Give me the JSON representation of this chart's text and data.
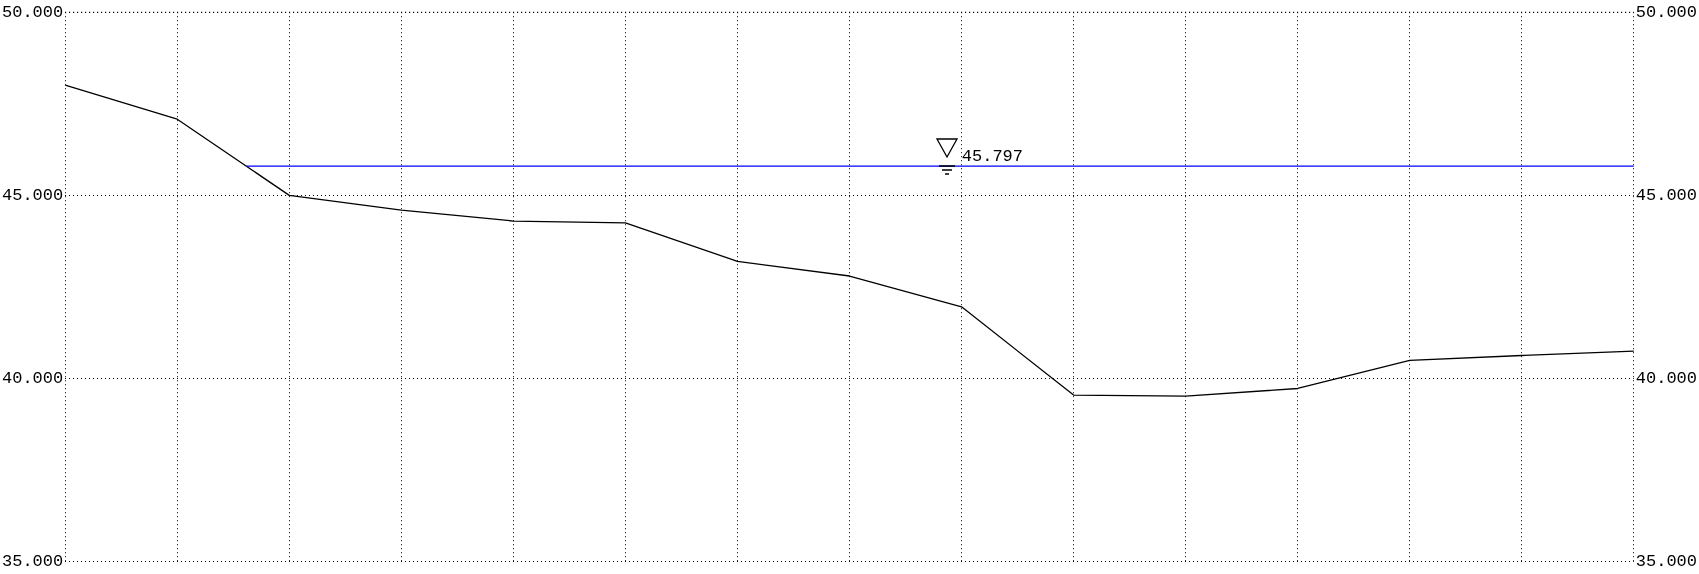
{
  "chart_data": {
    "type": "line",
    "categories": [
      null,
      null,
      null,
      null,
      null,
      null,
      null,
      null,
      null,
      null,
      null,
      null,
      null,
      null,
      null
    ],
    "series": [
      {
        "color": "#000000",
        "values": [
          48.01,
          47.08,
          45.0,
          44.6,
          44.3,
          44.25,
          43.2,
          42.8,
          41.96,
          39.55,
          39.52,
          39.73,
          40.5,
          40.63,
          40.75
        ]
      }
    ],
    "ylim": [
      35,
      50
    ],
    "yticks": [
      {
        "value": 35,
        "label": "35.000"
      },
      {
        "value": 40,
        "label": "40.000"
      },
      {
        "value": 45,
        "label": "45.000"
      },
      {
        "value": 50,
        "label": "50.000"
      }
    ],
    "y2lim": [
      35,
      50
    ],
    "y2ticks": [
      {
        "value": 35,
        "label": "35.000"
      },
      {
        "value": 40,
        "label": "40.000"
      },
      {
        "value": 45,
        "label": "45.000"
      },
      {
        "value": 50,
        "label": "50.000"
      }
    ],
    "tick_labels": "y",
    "grid": true,
    "marker": "none",
    "line_style": "solid",
    "ref_lines": [
      {
        "axis": "y",
        "value": 45.797,
        "label": "45.797",
        "color": "#0000ff"
      }
    ]
  }
}
